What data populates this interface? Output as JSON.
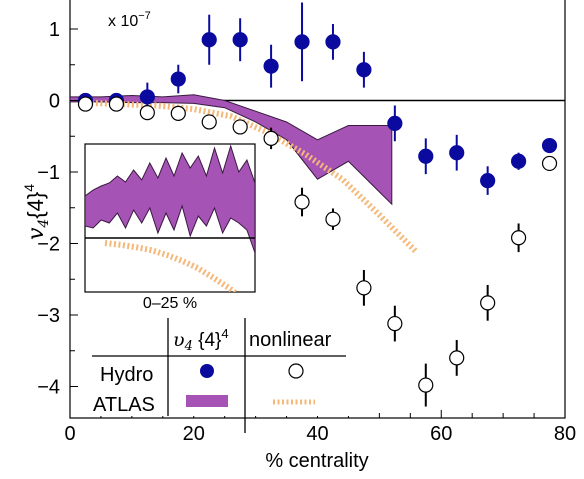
{
  "chart_data": {
    "type": "scatter",
    "xlabel": "% centrality",
    "ylabel_base": "v",
    "ylabel_sub": "4",
    "ylabel_braces": "{4}",
    "ylabel_sup": "4",
    "multiplier_base": "x 10",
    "multiplier_exp": "−7",
    "xlim": [
      0,
      80
    ],
    "ylim": [
      -4.4,
      1.4
    ],
    "x_ticks": [
      0,
      20,
      40,
      60,
      80
    ],
    "x_tick_labels": [
      "0",
      "20",
      "40",
      "60",
      "80"
    ],
    "y_ticks": [
      1,
      0,
      -1,
      -2,
      -3,
      -4
    ],
    "y_tick_labels": [
      "1",
      "0",
      "−1",
      "−2",
      "−3",
      "−4"
    ],
    "series": [
      {
        "name": "Hydro v4{4}^4",
        "marker": "filled-circle",
        "color": "#0a0a9e",
        "x": [
          2.5,
          7.5,
          12.5,
          17.5,
          22.5,
          27.5,
          32.5,
          37.5,
          42.5,
          47.5,
          52.5,
          57.5,
          62.5,
          67.5,
          72.5,
          77.5
        ],
        "y": [
          0.0,
          0.0,
          0.05,
          0.3,
          0.85,
          0.85,
          0.48,
          0.82,
          0.82,
          0.43,
          -0.32,
          -0.78,
          -0.73,
          -1.12,
          -0.85,
          -0.63
        ],
        "err": [
          0.05,
          0.1,
          0.2,
          0.2,
          0.35,
          0.3,
          0.3,
          0.55,
          0.25,
          0.25,
          0.25,
          0.25,
          0.25,
          0.2,
          0.12,
          0.1
        ]
      },
      {
        "name": "Hydro nonlinear",
        "marker": "open-circle",
        "color": "#000000",
        "x": [
          2.5,
          7.5,
          12.5,
          17.5,
          22.5,
          27.5,
          32.5,
          37.5,
          42.5,
          47.5,
          52.5,
          57.5,
          62.5,
          67.5,
          72.5,
          77.5
        ],
        "y": [
          -0.05,
          -0.05,
          -0.17,
          -0.18,
          -0.3,
          -0.37,
          -0.53,
          -1.42,
          -1.66,
          -2.62,
          -3.12,
          -3.98,
          -3.6,
          -2.83,
          -1.92,
          -0.88
        ],
        "err": [
          0.05,
          0.05,
          0.1,
          0.1,
          0.1,
          0.1,
          0.15,
          0.2,
          0.15,
          0.25,
          0.25,
          0.3,
          0.25,
          0.25,
          0.2,
          0.1
        ]
      },
      {
        "name": "ATLAS v4{4}^4",
        "type": "band",
        "color": "#a553b4",
        "x": [
          0,
          5,
          10,
          15,
          20,
          25,
          30,
          35,
          40,
          45,
          52
        ],
        "upper": [
          0.05,
          0.05,
          0.07,
          0.05,
          0.08,
          0.0,
          -0.15,
          -0.3,
          -0.55,
          -0.35,
          -0.35
        ],
        "lower": [
          -0.02,
          -0.02,
          -0.03,
          -0.03,
          -0.04,
          -0.1,
          -0.3,
          -0.55,
          -1.1,
          -0.85,
          -1.45
        ]
      },
      {
        "name": "ATLAS nonlinear",
        "type": "dashed-line",
        "color": "#f5b878",
        "x": [
          2,
          8,
          14,
          20,
          26,
          32,
          38,
          44,
          50,
          56
        ],
        "y": [
          -0.03,
          -0.05,
          -0.07,
          -0.12,
          -0.22,
          -0.45,
          -0.75,
          -1.1,
          -1.6,
          -2.12
        ]
      }
    ],
    "inset": {
      "label": "0–25 %",
      "band_upper": [
        0.42,
        0.48,
        0.52,
        0.55,
        0.62,
        0.56,
        0.68,
        0.58,
        0.75,
        0.6,
        0.8,
        0.62,
        0.85,
        0.7,
        0.82,
        0.62,
        0.9,
        0.65,
        0.92,
        0.66,
        0.78,
        0.55
      ],
      "band_lower": [
        0.12,
        0.1,
        0.18,
        0.15,
        0.25,
        0.1,
        0.28,
        0.15,
        0.3,
        0.05,
        0.25,
        0.08,
        0.32,
        0.02,
        0.22,
        0.12,
        0.3,
        0.05,
        0.2,
        0.15,
        0.08,
        -0.15
      ],
      "nonlinear": [
        0.0,
        -0.03,
        -0.07,
        -0.12,
        -0.2,
        -0.3,
        -0.42,
        -0.58,
        -0.75,
        -0.95
      ]
    },
    "legend": {
      "col_header_1_base": "υ",
      "col_header_1_sub": "4",
      "col_header_1_rest": " {4}",
      "col_header_1_sup": "4",
      "col_header_2": "nonlinear",
      "row_1": "Hydro",
      "row_2": "ATLAS"
    }
  }
}
